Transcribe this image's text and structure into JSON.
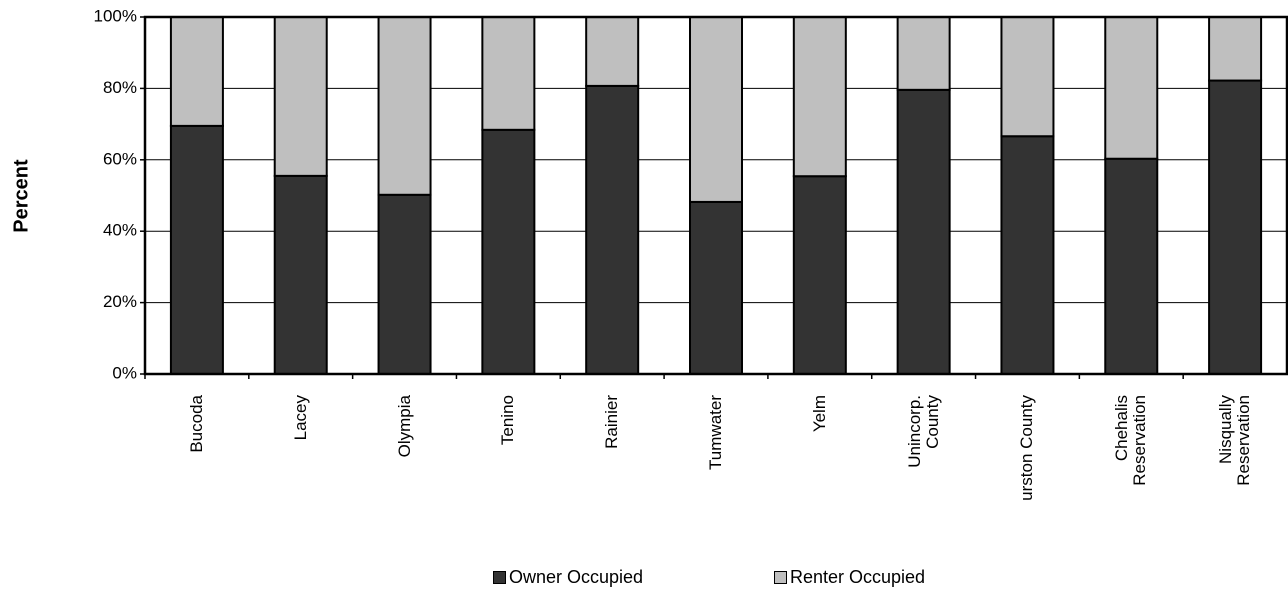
{
  "chart_data": {
    "type": "stacked_bar",
    "y_label": "Percent",
    "categories": [
      "Bucoda",
      "Lacey",
      "Olympia",
      "Tenino",
      "Rainier",
      "Tumwater",
      "Yelm",
      "Unincorp.\nCounty",
      "urston County",
      "Chehalis\nReservation",
      "Nisqually\nReservation"
    ],
    "series": [
      {
        "name": "Owner Occupied",
        "color": "#333333",
        "values": [
          69.5,
          55.5,
          50.2,
          68.4,
          80.7,
          48.2,
          55.4,
          79.6,
          66.6,
          60.3,
          82.2
        ]
      },
      {
        "name": "Renter Occupied",
        "color": "#bfbfbf",
        "values": [
          30.5,
          44.5,
          49.8,
          31.6,
          19.3,
          51.8,
          44.6,
          20.4,
          33.4,
          39.7,
          17.8
        ]
      }
    ],
    "ylim": [
      0,
      100
    ],
    "yticks": [
      {
        "value": 0,
        "label": "0%"
      },
      {
        "value": 20,
        "label": "20%"
      },
      {
        "value": 40,
        "label": "40%"
      },
      {
        "value": 60,
        "label": "60%"
      },
      {
        "value": 80,
        "label": "80%"
      },
      {
        "value": 100,
        "label": "100%"
      }
    ],
    "grid": true,
    "legend": "bottom"
  }
}
